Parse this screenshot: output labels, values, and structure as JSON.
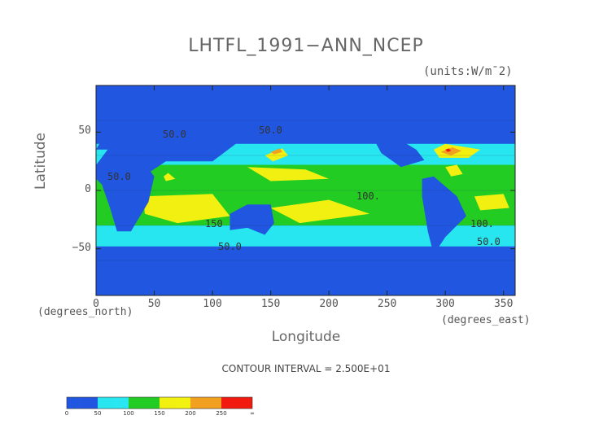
{
  "title": "LHTFL_1991−ANN_NCEP",
  "units": "(units:W/m¯2)",
  "x_unit_label": "(degrees_east)",
  "y_unit_label": "(degrees_north)",
  "contour_interval": "CONTOUR INTERVAL = 2.500E+01",
  "colors": {
    "c0": "#2156e0",
    "c50": "#28e6f0",
    "c100": "#22cc22",
    "c150": "#f2f010",
    "c200": "#f2a020",
    "c250": "#f21a10"
  },
  "chart_data": {
    "type": "heatmap",
    "title": "LHTFL_1991−ANN_NCEP",
    "xlabel": "Longitude",
    "ylabel": "Latitude",
    "xlim": [
      0,
      360
    ],
    "ylim": [
      -90,
      90
    ],
    "xticks": [
      0,
      50,
      100,
      150,
      200,
      250,
      300,
      350
    ],
    "yticks": [
      -50,
      0,
      50
    ],
    "contour_labels": [
      "50.0",
      "50.0",
      "50.0",
      "100.",
      "150",
      "100.",
      "50.0",
      "50.0"
    ],
    "colorbar": {
      "levels": [
        0,
        50,
        100,
        150,
        200,
        250
      ],
      "tick_labels": [
        "0",
        "50",
        "100",
        "150",
        "200",
        "250",
        "∞"
      ]
    }
  }
}
